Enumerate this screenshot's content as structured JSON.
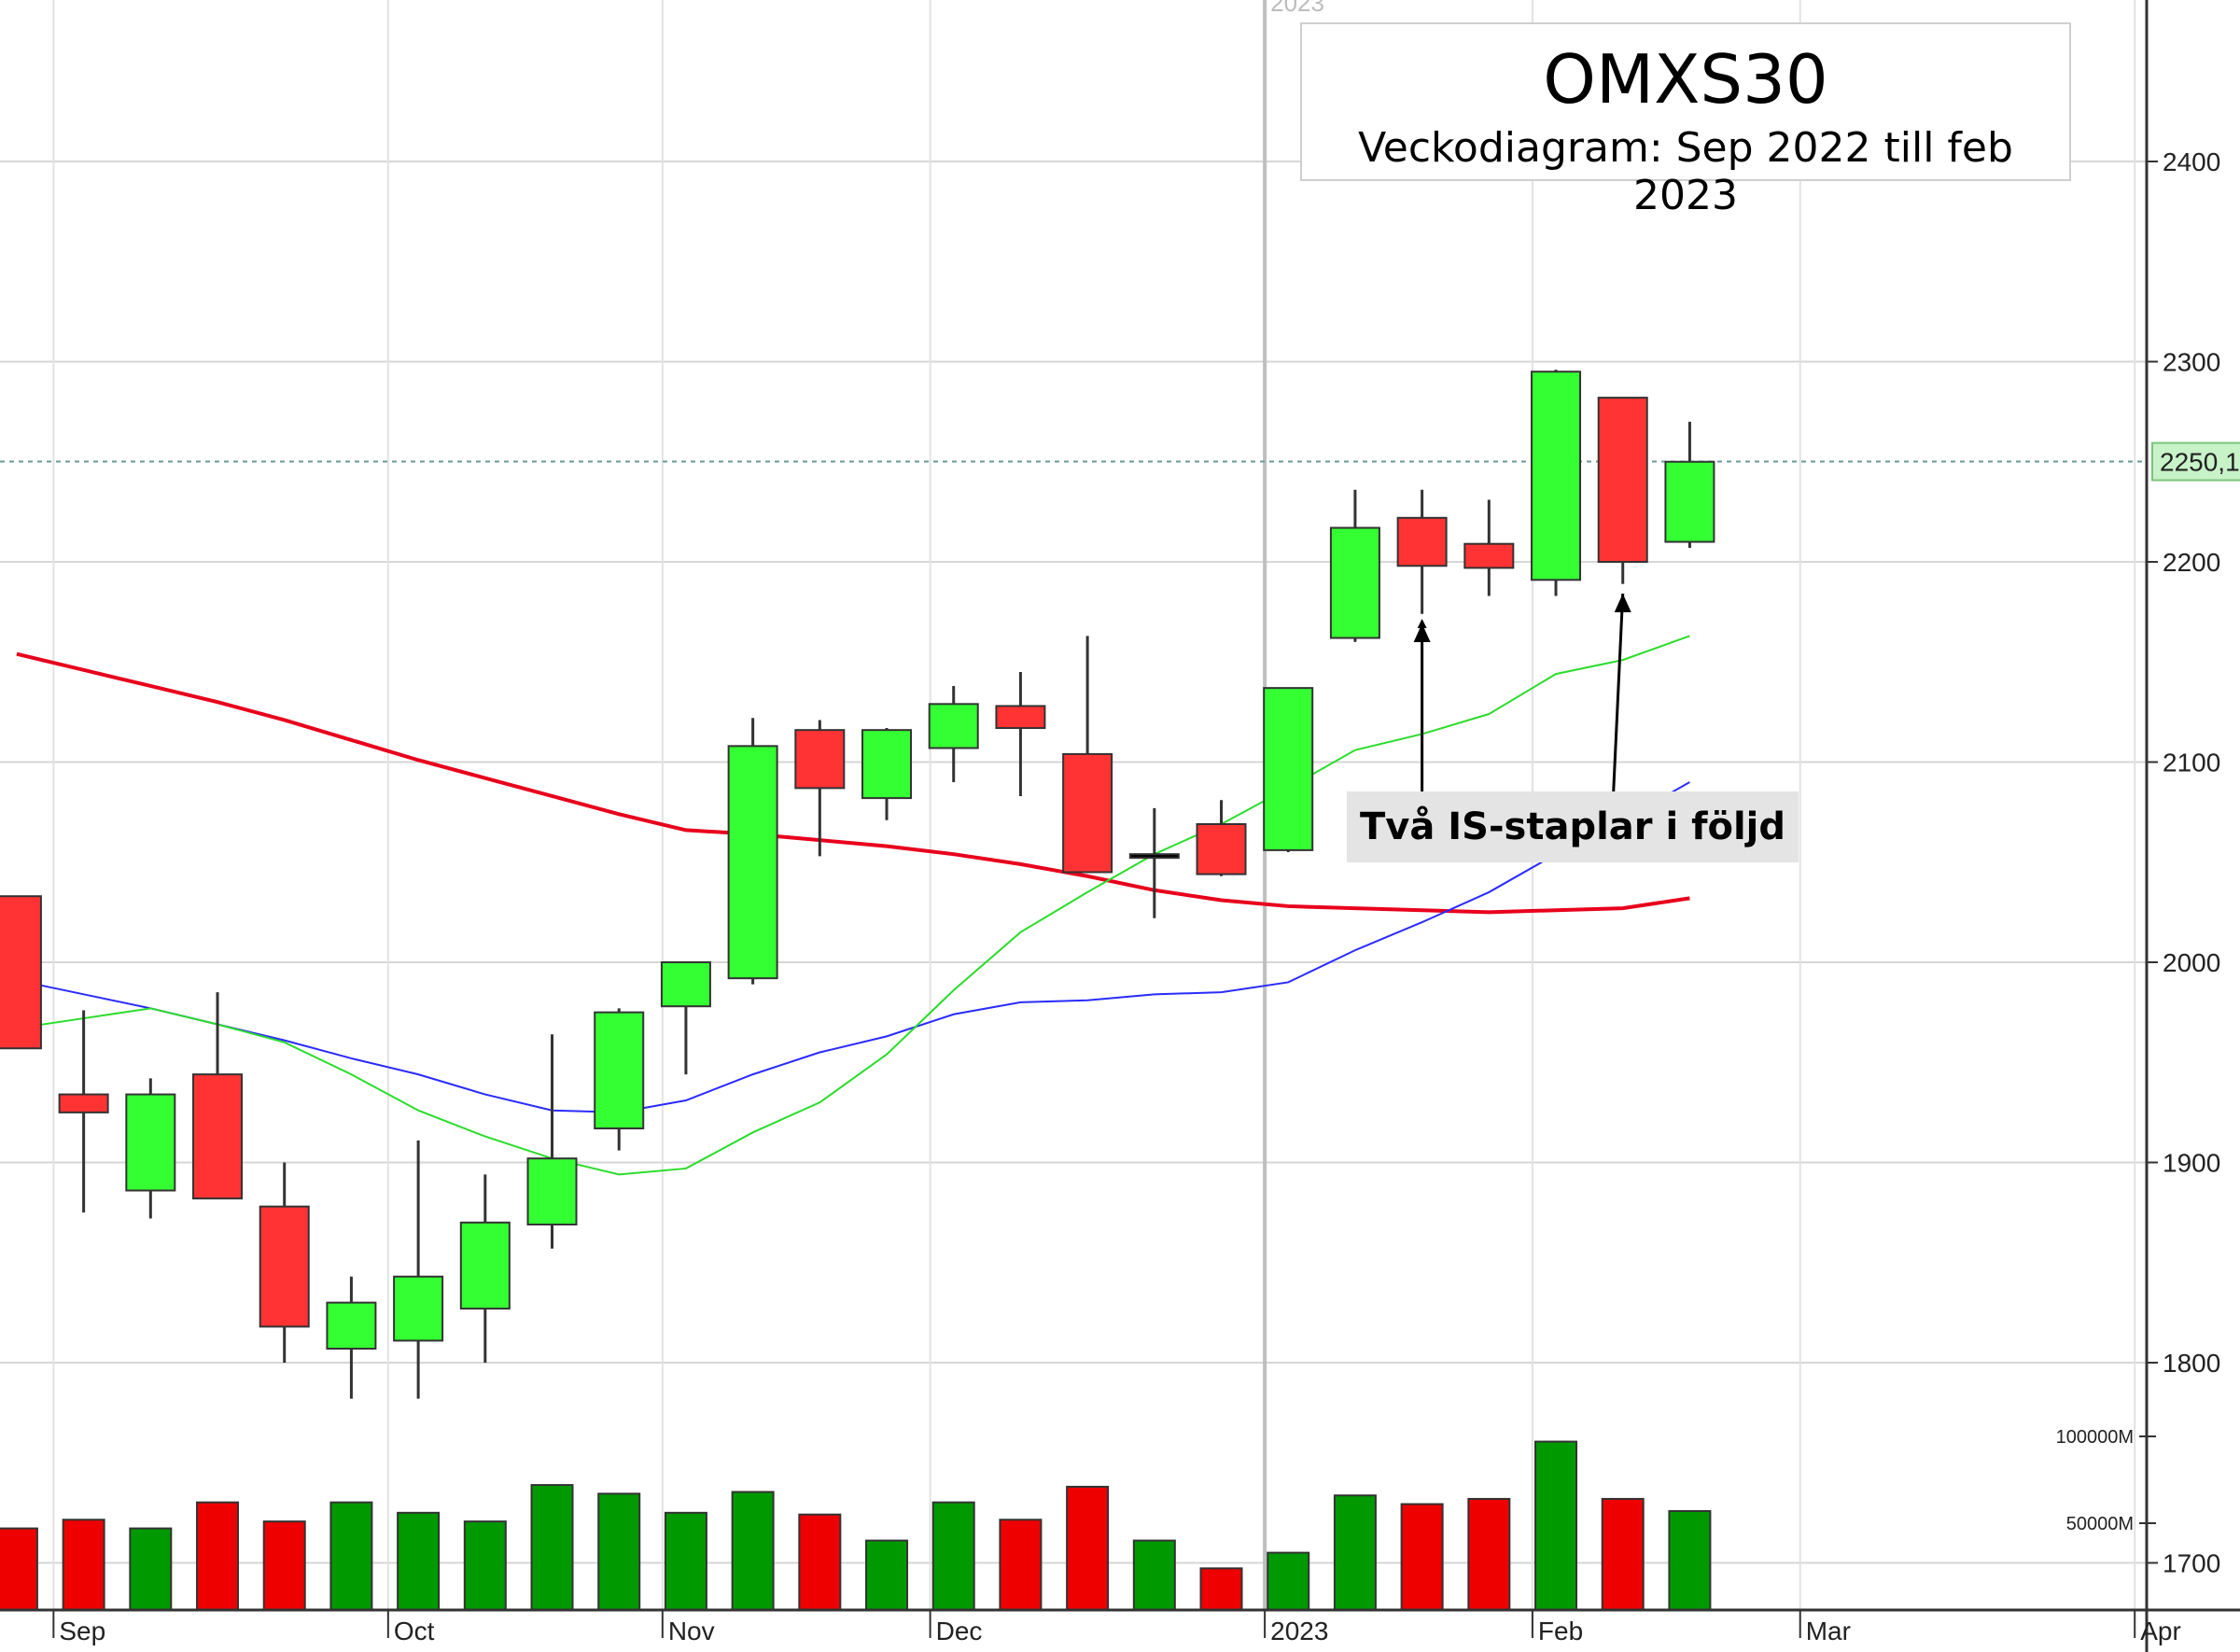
{
  "chart_data": {
    "type": "candlestick",
    "title": "OMXS30",
    "subtitle": "Veckodiagram: Sep 2022 till feb 2023",
    "annotation": "Två IS-staplar i följd",
    "y_ticks": [
      1700,
      1800,
      1900,
      2000,
      2100,
      2200,
      2300,
      2400
    ],
    "ylim": [
      1677,
      2480
    ],
    "current_price_label": "2250,1",
    "current_price": 2250.1,
    "volume_ticks": [
      {
        "label": "100000M",
        "value": 100000
      },
      {
        "label": "50000M",
        "value": 50000
      }
    ],
    "x_labels": [
      {
        "label": "Sep",
        "week": 0.8
      },
      {
        "label": "Oct",
        "week": 5.8
      },
      {
        "label": "Nov",
        "week": 9.9
      },
      {
        "label": "Dec",
        "week": 13.9
      },
      {
        "label": "2023",
        "week": 18.9
      },
      {
        "label": "Feb",
        "week": 22.9
      },
      {
        "label": "Mar",
        "week": 26.9
      },
      {
        "label": "Apr",
        "week": 31.9
      }
    ],
    "year_marker": "2023",
    "candles": [
      {
        "open": 2033,
        "high": 2033,
        "low": 1957,
        "close": 1957,
        "volume": 47000,
        "color": "red"
      },
      {
        "open": 1934,
        "high": 1976,
        "low": 1875,
        "close": 1925,
        "volume": 52000,
        "color": "red"
      },
      {
        "open": 1886,
        "high": 1942,
        "low": 1872,
        "close": 1934,
        "volume": 47000,
        "color": "green"
      },
      {
        "open": 1944,
        "high": 1985,
        "low": 1882,
        "close": 1882,
        "volume": 62000,
        "color": "red"
      },
      {
        "open": 1878,
        "high": 1900,
        "low": 1800,
        "close": 1818,
        "volume": 51000,
        "color": "red"
      },
      {
        "open": 1807,
        "high": 1843,
        "low": 1782,
        "close": 1830,
        "volume": 62000,
        "color": "green"
      },
      {
        "open": 1811,
        "high": 1911,
        "low": 1782,
        "close": 1843,
        "volume": 56000,
        "color": "green"
      },
      {
        "open": 1827,
        "high": 1894,
        "low": 1800,
        "close": 1870,
        "volume": 51000,
        "color": "green"
      },
      {
        "open": 1869,
        "high": 1964,
        "low": 1857,
        "close": 1902,
        "volume": 72000,
        "color": "green"
      },
      {
        "open": 1917,
        "high": 1977,
        "low": 1906,
        "close": 1975,
        "volume": 67000,
        "color": "green"
      },
      {
        "open": 1978,
        "high": 2000,
        "low": 1944,
        "close": 2000,
        "volume": 56000,
        "color": "green"
      },
      {
        "open": 1992,
        "high": 2122,
        "low": 1989,
        "close": 2108,
        "volume": 68000,
        "color": "green"
      },
      {
        "open": 2116,
        "high": 2121,
        "low": 2053,
        "close": 2087,
        "volume": 55000,
        "color": "red"
      },
      {
        "open": 2082,
        "high": 2117,
        "low": 2071,
        "close": 2116,
        "volume": 40000,
        "color": "green"
      },
      {
        "open": 2107,
        "high": 2138,
        "low": 2090,
        "close": 2129,
        "volume": 62000,
        "color": "green"
      },
      {
        "open": 2128,
        "high": 2145,
        "low": 2083,
        "close": 2117,
        "volume": 52000,
        "color": "red"
      },
      {
        "open": 2104,
        "high": 2163,
        "low": 2045,
        "close": 2045,
        "volume": 71000,
        "color": "red"
      },
      {
        "open": 2054,
        "high": 2077,
        "low": 2022,
        "close": 2054,
        "volume": 40000,
        "color": "black"
      },
      {
        "open": 2069,
        "high": 2081,
        "low": 2043,
        "close": 2044,
        "volume": 24000,
        "color": "red"
      },
      {
        "open": 2056,
        "high": 2137,
        "low": 2055,
        "close": 2137,
        "volume": 33000,
        "color": "green"
      },
      {
        "open": 2162,
        "high": 2236,
        "low": 2160,
        "close": 2217,
        "volume": 66000,
        "color": "green"
      },
      {
        "open": 2222,
        "high": 2236,
        "low": 2174,
        "close": 2198,
        "volume": 61000,
        "color": "red"
      },
      {
        "open": 2209,
        "high": 2231,
        "low": 2183,
        "close": 2197,
        "volume": 64000,
        "color": "red"
      },
      {
        "open": 2191,
        "high": 2296,
        "low": 2183,
        "close": 2295,
        "volume": 97000,
        "color": "green"
      },
      {
        "open": 2282,
        "high": 2282,
        "low": 2189,
        "close": 2200,
        "volume": 64000,
        "color": "red"
      },
      {
        "open": 2210,
        "high": 2270,
        "low": 2207,
        "close": 2250,
        "volume": 57000,
        "color": "green"
      }
    ],
    "series": [
      {
        "color": "#e8001c",
        "width": 4,
        "values": [
          2154,
          2146,
          2138,
          2130,
          2121,
          2111,
          2101,
          2092,
          2083,
          2074,
          2066,
          2064,
          2061,
          2058,
          2054,
          2049,
          2043,
          2036,
          2031,
          2028,
          2027,
          2026,
          2025,
          2026,
          2027,
          2032
        ]
      },
      {
        "color": "#2b2bff",
        "width": 2,
        "values": [
          1991,
          1984,
          1977,
          1969,
          1961,
          1952,
          1944,
          1934,
          1926,
          1925,
          1931,
          1944,
          1955,
          1963,
          1974,
          1980,
          1981,
          1984,
          1985,
          1990,
          2006,
          2020,
          2035,
          2054,
          2071,
          2090
        ]
      },
      {
        "color": "#2bdc2b",
        "width": 2,
        "values": [
          1967,
          1972,
          1977,
          1969,
          1960,
          1944,
          1926,
          1913,
          1902,
          1894,
          1897,
          1915,
          1930,
          1954,
          1986,
          2015,
          2035,
          2054,
          2069,
          2087,
          2106,
          2114,
          2124,
          2144,
          2151,
          2163
        ]
      }
    ]
  }
}
